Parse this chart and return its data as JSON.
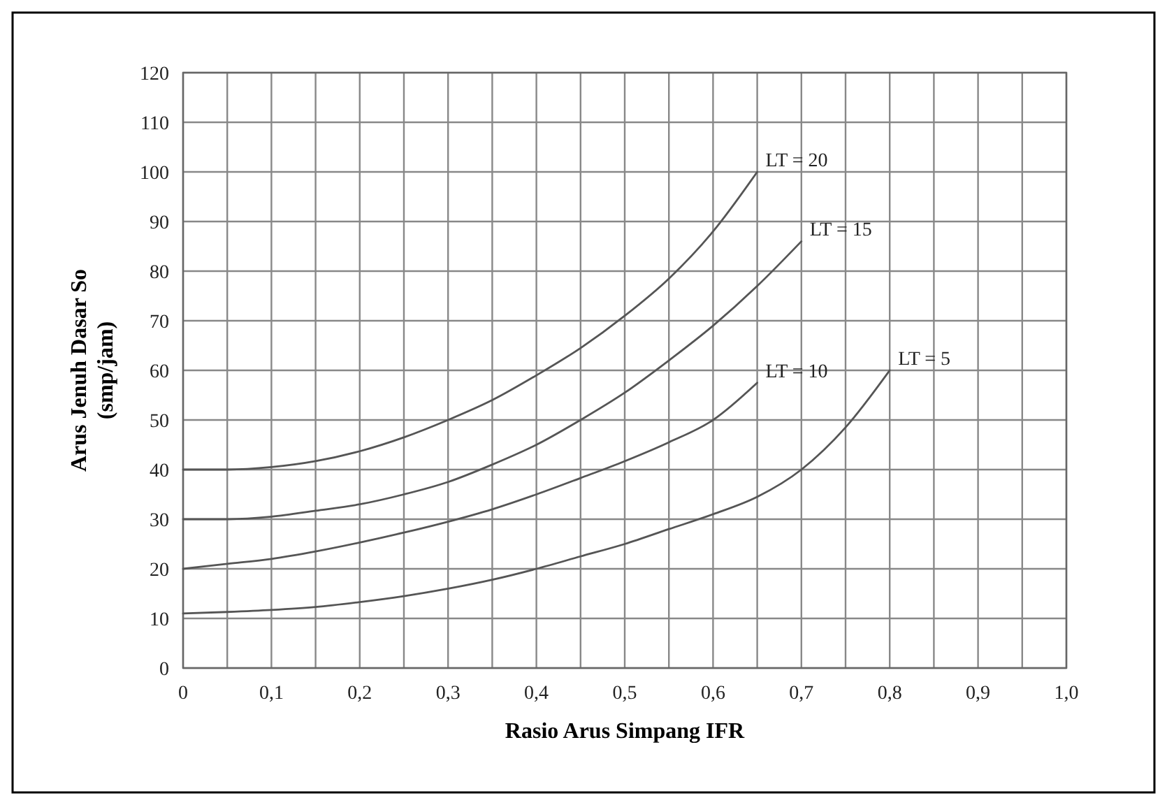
{
  "chart_data": {
    "type": "line",
    "xlabel": "Rasio Arus Simpang IFR",
    "ylabel": "Arus Jenuh Dasar So\n(smp/jam)",
    "xlim": [
      0,
      1
    ],
    "ylim": [
      0,
      120
    ],
    "xticks": [
      {
        "value": 0,
        "label": "0"
      },
      {
        "value": 0.05,
        "label": null
      },
      {
        "value": 0.1,
        "label": "0,1"
      },
      {
        "value": 0.15,
        "label": null
      },
      {
        "value": 0.2,
        "label": "0,2"
      },
      {
        "value": 0.25,
        "label": null
      },
      {
        "value": 0.3,
        "label": "0,3"
      },
      {
        "value": 0.35,
        "label": null
      },
      {
        "value": 0.4,
        "label": "0,4"
      },
      {
        "value": 0.45,
        "label": null
      },
      {
        "value": 0.5,
        "label": "0,5"
      },
      {
        "value": 0.55,
        "label": null
      },
      {
        "value": 0.6,
        "label": "0,6"
      },
      {
        "value": 0.65,
        "label": null
      },
      {
        "value": 0.7,
        "label": "0,7"
      },
      {
        "value": 0.75,
        "label": null
      },
      {
        "value": 0.8,
        "label": "0,8"
      },
      {
        "value": 0.85,
        "label": null
      },
      {
        "value": 0.9,
        "label": "0,9"
      },
      {
        "value": 0.95,
        "label": null
      },
      {
        "value": 1,
        "label": "1,0"
      }
    ],
    "yticks": [
      0,
      10,
      20,
      30,
      40,
      50,
      60,
      70,
      80,
      90,
      100,
      110,
      120
    ],
    "grid": true,
    "marker": "none",
    "line_style": "solid",
    "series": [
      {
        "color": "#555555",
        "x": [
          0,
          0.05,
          0.1,
          0.15,
          0.2,
          0.25,
          0.3,
          0.35,
          0.4,
          0.45,
          0.5,
          0.55,
          0.6,
          0.65
        ],
        "values": [
          40,
          40,
          40.5,
          41.7,
          43.7,
          46.5,
          50,
          54,
          59,
          64.5,
          71,
          78.5,
          88,
          100
        ]
      },
      {
        "color": "#555555",
        "x": [
          0,
          0.05,
          0.1,
          0.15,
          0.2,
          0.25,
          0.3,
          0.35,
          0.4,
          0.45,
          0.5,
          0.55,
          0.6,
          0.65,
          0.7
        ],
        "values": [
          30,
          30,
          30.5,
          31.7,
          33,
          35,
          37.5,
          41,
          45,
          50,
          55.5,
          62,
          69,
          77,
          86
        ]
      },
      {
        "color": "#555555",
        "x": [
          0,
          0.05,
          0.1,
          0.15,
          0.2,
          0.25,
          0.3,
          0.35,
          0.4,
          0.45,
          0.5,
          0.55,
          0.6,
          0.65
        ],
        "values": [
          20,
          21,
          22,
          23.5,
          25.3,
          27.3,
          29.5,
          32,
          35,
          38.3,
          41.7,
          45.5,
          50,
          57.5
        ]
      },
      {
        "color": "#555555",
        "x": [
          0,
          0.05,
          0.1,
          0.15,
          0.2,
          0.25,
          0.3,
          0.35,
          0.4,
          0.45,
          0.5,
          0.55,
          0.6,
          0.65,
          0.7,
          0.75,
          0.8
        ],
        "values": [
          11,
          11.3,
          11.7,
          12.3,
          13.3,
          14.5,
          16,
          17.8,
          20,
          22.5,
          25,
          28,
          31,
          34.5,
          40,
          48.5,
          60
        ]
      }
    ],
    "annotations": [
      {
        "text": "LT = 20",
        "x": 0.65,
        "y": 100
      },
      {
        "text": "LT = 15",
        "x": 0.7,
        "y": 86
      },
      {
        "text": "LT = 10",
        "x": 0.65,
        "y": 57.5
      },
      {
        "text": "LT = 5",
        "x": 0.8,
        "y": 60
      }
    ]
  }
}
